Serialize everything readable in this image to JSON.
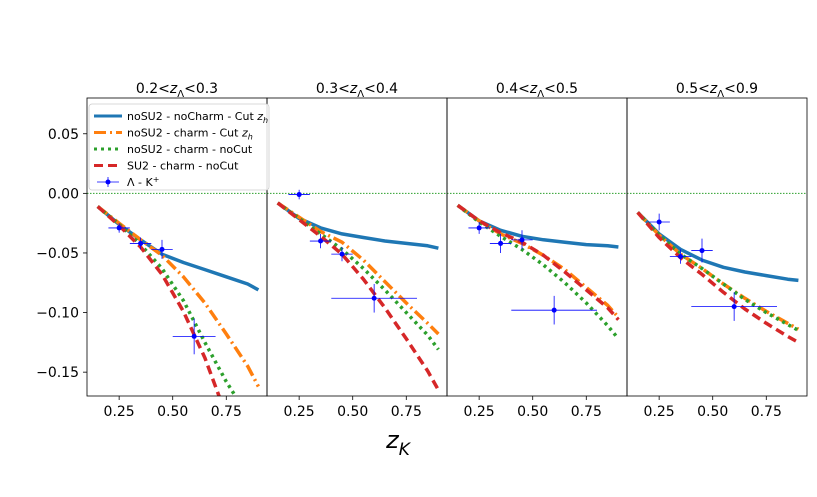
{
  "chart_data": {
    "type": "line",
    "xlabel": "z",
    "xlabel_sub": "K",
    "ylim": [
      -0.17,
      0.08
    ],
    "xlim": [
      0.1,
      0.94
    ],
    "yticks": [
      0.05,
      0.0,
      -0.05,
      -0.1,
      -0.15
    ],
    "ytick_labels": [
      "0.05",
      "0.00",
      "−0.05",
      "−0.10",
      "−0.15"
    ],
    "xticks": [
      0.25,
      0.5,
      0.75
    ],
    "xtick_labels": [
      "0.25",
      "0.50",
      "0.75"
    ],
    "zero_line": true,
    "legend_position": "upper-left of first panel",
    "legend": [
      {
        "label": "noSU2 - noCharm - Cut ",
        "label_math": "z",
        "label_math_sub": "h",
        "color": "#1f77b4",
        "style": "solid"
      },
      {
        "label": "noSU2 - charm - Cut ",
        "label_math": "z",
        "label_math_sub": "h",
        "color": "#ff7f0e",
        "style": "dashdot"
      },
      {
        "label": "noSU2 - charm - noCut",
        "label_math": "",
        "label_math_sub": "",
        "color": "#2ca02c",
        "style": "dotted"
      },
      {
        "label": "SU2 - charm - noCut",
        "label_math": "",
        "label_math_sub": "",
        "color": "#d62728",
        "style": "dashed"
      },
      {
        "label": "Λ - K",
        "label_math": "",
        "label_math_sub": "",
        "label_sup": "+",
        "color": "#0000ff",
        "style": "errorbar"
      }
    ],
    "panels": [
      {
        "title_left": "0.2<z",
        "title_sub": "Λ",
        "title_right": "<0.3",
        "series": [
          {
            "key": "noSU2_noCharm_Cut",
            "x": [
              0.15,
              0.25,
              0.35,
              0.45,
              0.55,
              0.65,
              0.75,
              0.85,
              0.9
            ],
            "y": [
              -0.011,
              -0.026,
              -0.039,
              -0.051,
              -0.058,
              -0.064,
              -0.07,
              -0.076,
              -0.081
            ]
          },
          {
            "key": "noSU2_charm_Cut",
            "x": [
              0.15,
              0.25,
              0.35,
              0.45,
              0.55,
              0.65,
              0.75,
              0.85,
              0.9
            ],
            "y": [
              -0.011,
              -0.025,
              -0.039,
              -0.052,
              -0.07,
              -0.092,
              -0.118,
              -0.145,
              -0.162
            ]
          },
          {
            "key": "noSU2_charm_noCut",
            "x": [
              0.15,
              0.25,
              0.35,
              0.45,
              0.55,
              0.65,
              0.75,
              0.81
            ],
            "y": [
              -0.011,
              -0.026,
              -0.043,
              -0.063,
              -0.09,
              -0.125,
              -0.158,
              -0.175
            ]
          },
          {
            "key": "SU2_charm_noCut",
            "x": [
              0.15,
              0.25,
              0.35,
              0.45,
              0.55,
              0.65,
              0.72
            ],
            "y": [
              -0.011,
              -0.027,
              -0.045,
              -0.068,
              -0.099,
              -0.138,
              -0.172
            ]
          }
        ],
        "points": [
          {
            "x": 0.25,
            "y": -0.029,
            "xerr": 0.05,
            "yerr": 0.004
          },
          {
            "x": 0.35,
            "y": -0.042,
            "xerr": 0.05,
            "yerr": 0.005
          },
          {
            "x": 0.45,
            "y": -0.047,
            "xerr": 0.05,
            "yerr": 0.008
          },
          {
            "x": 0.6,
            "y": -0.12,
            "xerr": 0.1,
            "yerr": 0.015
          }
        ]
      },
      {
        "title_left": "0.3<z",
        "title_sub": "Λ",
        "title_right": "<0.4",
        "series": [
          {
            "key": "noSU2_noCharm_Cut",
            "x": [
              0.15,
              0.25,
              0.35,
              0.45,
              0.55,
              0.65,
              0.75,
              0.85,
              0.9
            ],
            "y": [
              -0.008,
              -0.021,
              -0.029,
              -0.034,
              -0.037,
              -0.04,
              -0.042,
              -0.044,
              -0.046
            ]
          },
          {
            "key": "noSU2_charm_Cut",
            "x": [
              0.15,
              0.25,
              0.35,
              0.45,
              0.55,
              0.65,
              0.75,
              0.85,
              0.9
            ],
            "y": [
              -0.008,
              -0.02,
              -0.032,
              -0.041,
              -0.056,
              -0.074,
              -0.092,
              -0.109,
              -0.118
            ]
          },
          {
            "key": "noSU2_charm_noCut",
            "x": [
              0.15,
              0.25,
              0.35,
              0.45,
              0.55,
              0.65,
              0.75,
              0.85,
              0.9
            ],
            "y": [
              -0.008,
              -0.021,
              -0.034,
              -0.047,
              -0.063,
              -0.081,
              -0.1,
              -0.119,
              -0.131
            ]
          },
          {
            "key": "SU2_charm_noCut",
            "x": [
              0.15,
              0.25,
              0.35,
              0.45,
              0.55,
              0.65,
              0.75,
              0.85,
              0.9
            ],
            "y": [
              -0.008,
              -0.022,
              -0.036,
              -0.051,
              -0.072,
              -0.096,
              -0.122,
              -0.149,
              -0.165
            ]
          }
        ],
        "points": [
          {
            "x": 0.25,
            "y": -0.001,
            "xerr": 0.05,
            "yerr": 0.004
          },
          {
            "x": 0.35,
            "y": -0.04,
            "xerr": 0.05,
            "yerr": 0.006
          },
          {
            "x": 0.45,
            "y": -0.051,
            "xerr": 0.05,
            "yerr": 0.006
          },
          {
            "x": 0.6,
            "y": -0.088,
            "xerr": 0.2,
            "yerr": 0.012
          }
        ]
      },
      {
        "title_left": "0.4<z",
        "title_sub": "Λ",
        "title_right": "<0.5",
        "series": [
          {
            "key": "noSU2_noCharm_Cut",
            "x": [
              0.15,
              0.25,
              0.35,
              0.45,
              0.55,
              0.65,
              0.75,
              0.85,
              0.9
            ],
            "y": [
              -0.01,
              -0.023,
              -0.031,
              -0.036,
              -0.039,
              -0.041,
              -0.043,
              -0.044,
              -0.045
            ]
          },
          {
            "key": "noSU2_charm_Cut",
            "x": [
              0.15,
              0.25,
              0.35,
              0.45,
              0.55,
              0.65,
              0.75,
              0.85,
              0.9
            ],
            "y": [
              -0.01,
              -0.023,
              -0.034,
              -0.042,
              -0.052,
              -0.064,
              -0.079,
              -0.094,
              -0.104
            ]
          },
          {
            "key": "noSU2_charm_noCut",
            "x": [
              0.15,
              0.25,
              0.35,
              0.45,
              0.55,
              0.65,
              0.75,
              0.85,
              0.9
            ],
            "y": [
              -0.01,
              -0.024,
              -0.036,
              -0.047,
              -0.06,
              -0.075,
              -0.092,
              -0.111,
              -0.122
            ]
          },
          {
            "key": "SU2_charm_noCut",
            "x": [
              0.15,
              0.25,
              0.35,
              0.45,
              0.55,
              0.65,
              0.75,
              0.85,
              0.9
            ],
            "y": [
              -0.01,
              -0.023,
              -0.033,
              -0.041,
              -0.052,
              -0.066,
              -0.081,
              -0.096,
              -0.106
            ]
          }
        ],
        "points": [
          {
            "x": 0.25,
            "y": -0.029,
            "xerr": 0.05,
            "yerr": 0.005
          },
          {
            "x": 0.35,
            "y": -0.042,
            "xerr": 0.05,
            "yerr": 0.008
          },
          {
            "x": 0.45,
            "y": -0.039,
            "xerr": 0.05,
            "yerr": 0.008
          },
          {
            "x": 0.6,
            "y": -0.098,
            "xerr": 0.2,
            "yerr": 0.012
          }
        ]
      },
      {
        "title_left": "0.5<z",
        "title_sub": "Λ",
        "title_right": "<0.9",
        "series": [
          {
            "key": "noSU2_noCharm_Cut",
            "x": [
              0.15,
              0.25,
              0.35,
              0.45,
              0.55,
              0.65,
              0.75,
              0.85,
              0.9
            ],
            "y": [
              -0.016,
              -0.034,
              -0.047,
              -0.056,
              -0.062,
              -0.066,
              -0.069,
              -0.072,
              -0.073
            ]
          },
          {
            "key": "noSU2_charm_Cut",
            "x": [
              0.15,
              0.25,
              0.35,
              0.45,
              0.55,
              0.65,
              0.75,
              0.85,
              0.9
            ],
            "y": [
              -0.016,
              -0.035,
              -0.051,
              -0.063,
              -0.076,
              -0.088,
              -0.099,
              -0.109,
              -0.114
            ]
          },
          {
            "key": "noSU2_charm_noCut",
            "x": [
              0.15,
              0.25,
              0.35,
              0.45,
              0.55,
              0.65,
              0.75,
              0.85,
              0.9
            ],
            "y": [
              -0.016,
              -0.035,
              -0.051,
              -0.063,
              -0.076,
              -0.089,
              -0.1,
              -0.11,
              -0.115
            ]
          },
          {
            "key": "SU2_charm_noCut",
            "x": [
              0.15,
              0.25,
              0.35,
              0.45,
              0.55,
              0.65,
              0.75,
              0.85,
              0.9
            ],
            "y": [
              -0.016,
              -0.037,
              -0.054,
              -0.068,
              -0.083,
              -0.097,
              -0.109,
              -0.12,
              -0.125
            ]
          }
        ],
        "points": [
          {
            "x": 0.25,
            "y": -0.024,
            "xerr": 0.05,
            "yerr": 0.007
          },
          {
            "x": 0.35,
            "y": -0.053,
            "xerr": 0.05,
            "yerr": 0.006
          },
          {
            "x": 0.45,
            "y": -0.048,
            "xerr": 0.05,
            "yerr": 0.01
          },
          {
            "x": 0.6,
            "y": -0.095,
            "xerr": 0.2,
            "yerr": 0.012
          }
        ]
      }
    ]
  }
}
